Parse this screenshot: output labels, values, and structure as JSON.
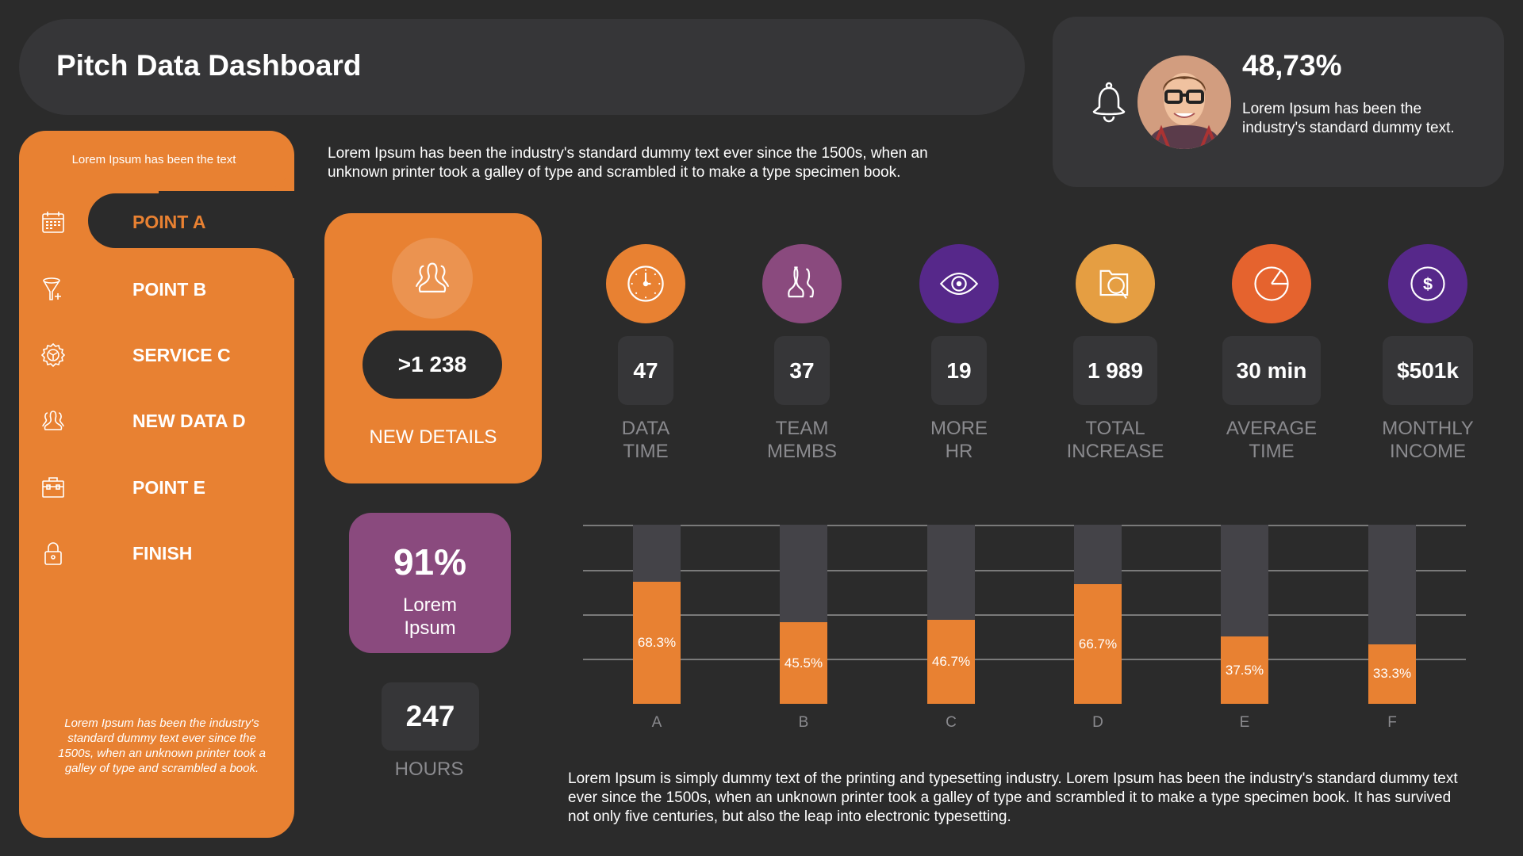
{
  "header": {
    "title": "Pitch Data Dashboard"
  },
  "profile": {
    "value": "48,73%",
    "text": "Lorem Ipsum has been the industry's standard dummy text.",
    "bell_icon": "bell-icon"
  },
  "sidebar": {
    "top_label": "Lorem Ipsum has been the text",
    "items": [
      {
        "label": "POINT A",
        "icon": "calendar-icon",
        "active": true
      },
      {
        "label": "POINT B",
        "icon": "funnel-plus-icon"
      },
      {
        "label": "SERVICE C",
        "icon": "gear-icon"
      },
      {
        "label": "NEW DATA D",
        "icon": "users-icon"
      },
      {
        "label": "POINT E",
        "icon": "toolbox-icon"
      },
      {
        "label": "FINISH",
        "icon": "lock-icon"
      }
    ],
    "footer": "Lorem Ipsum has been the industry's standard dummy text ever since the 1500s, when an unknown printer took a galley of type and scrambled  a book."
  },
  "intro": "Lorem Ipsum has been the industry's standard dummy text ever since the 1500s, when an unknown printer took a galley of type and scrambled it to make a type specimen book.",
  "details_card": {
    "value": ">1 238",
    "label": "NEW DETAILS"
  },
  "percent_card": {
    "value": "91%",
    "label": "Lorem Ipsum"
  },
  "hours_card": {
    "value": "247",
    "label": "HOURS"
  },
  "stats": [
    {
      "value": "47",
      "line1": "DATA",
      "line2": "TIME",
      "color": "#E88132",
      "icon": "clock-icon"
    },
    {
      "value": "37",
      "line1": "TEAM",
      "line2": "MEMBS",
      "color": "#8A4A7E",
      "icon": "team-icon"
    },
    {
      "value": "19",
      "line1": "MORE",
      "line2": "HR",
      "color": "#56288A",
      "icon": "eye-icon"
    },
    {
      "value": "1 989",
      "line1": "TOTAL",
      "line2": "INCREASE",
      "color": "#E59E42",
      "icon": "folder-search-icon"
    },
    {
      "value": "30 min",
      "line1": "AVERAGE",
      "line2": "TIME",
      "color": "#E5632E",
      "icon": "pie-chart-icon"
    },
    {
      "value": "$501k",
      "line1": "MONTHLY",
      "line2": "INCOME",
      "color": "#56288A",
      "icon": "dollar-icon"
    }
  ],
  "chart_data": {
    "type": "bar",
    "categories": [
      "A",
      "B",
      "C",
      "D",
      "E",
      "F"
    ],
    "values": [
      68.3,
      45.5,
      46.7,
      66.7,
      37.5,
      33.3
    ],
    "labels": [
      "68.3%",
      "45.5%",
      "46.7%",
      "66.7%",
      "37.5%",
      "33.3%"
    ],
    "ylim": [
      0,
      100
    ],
    "grid": true,
    "bar_color": "#E88132",
    "track_color": "#444348"
  },
  "footer_text": "Lorem Ipsum is simply dummy text of the printing and typesetting industry. Lorem Ipsum has been the industry's standard dummy text ever since the 1500s, when an unknown printer took a galley of type and scrambled it to make a type specimen book. It has survived not only five centuries, but also the leap into electronic typesetting."
}
